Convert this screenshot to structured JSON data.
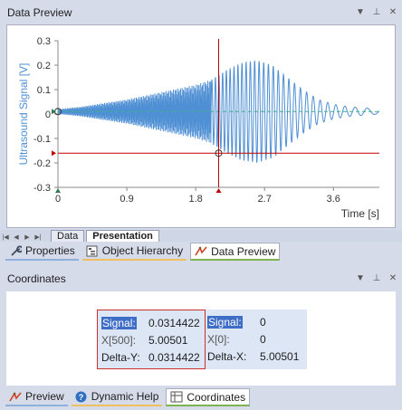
{
  "data_preview": {
    "title": "Data Preview"
  },
  "chart_data": {
    "type": "line",
    "title": "",
    "xlabel": "Time [s]",
    "ylabel": "Ultrasound Signal [V]",
    "xlim": [
      0,
      4.2
    ],
    "ylim": [
      -0.3,
      0.3
    ],
    "x_ticks": [
      "0",
      "0.9",
      "1.8",
      "2.7",
      "3.6"
    ],
    "y_ticks": [
      "0.3",
      "0.2",
      "0.1",
      "0",
      "-0.1",
      "-0.2",
      "-0.3"
    ],
    "series": [
      {
        "color": "#4f8fd4",
        "envelope_t": [
          0,
          0.3,
          0.6,
          0.9,
          1.2,
          1.5,
          1.8,
          2.0,
          2.1,
          2.2,
          2.4,
          2.6,
          2.8,
          3.0,
          3.2,
          3.4,
          3.6,
          3.8,
          4.0,
          4.2
        ],
        "envelope_amp": [
          0.01,
          0.02,
          0.035,
          0.05,
          0.07,
          0.09,
          0.11,
          0.13,
          0.15,
          0.17,
          0.2,
          0.21,
          0.19,
          0.14,
          0.09,
          0.05,
          0.03,
          0.02,
          0.015,
          0.01
        ]
      }
    ],
    "crosshair": {
      "x": 2.1,
      "y": -0.16
    },
    "baseline": 0.01
  },
  "sheet_tabs": {
    "data": "Data",
    "presentation": "Presentation"
  },
  "top_tabs": {
    "properties": "Properties",
    "hierarchy": "Object Hierarchy",
    "preview": "Data Preview"
  },
  "coordinates": {
    "title": "Coordinates",
    "left": {
      "signal_label": "Signal:",
      "signal_value": "0.0314422",
      "x_label": "X[500]:",
      "x_value": "5.00501",
      "dy_label": "Delta-Y:",
      "dy_value": "0.0314422"
    },
    "right": {
      "signal_label": "Signal:",
      "signal_value": "0",
      "x_label": "X[0]:",
      "x_value": "0",
      "dx_label": "Delta-X:",
      "dx_value": "5.00501"
    }
  },
  "bottom_tabs": {
    "preview": "Preview",
    "help": "Dynamic Help",
    "coordinates": "Coordinates"
  }
}
